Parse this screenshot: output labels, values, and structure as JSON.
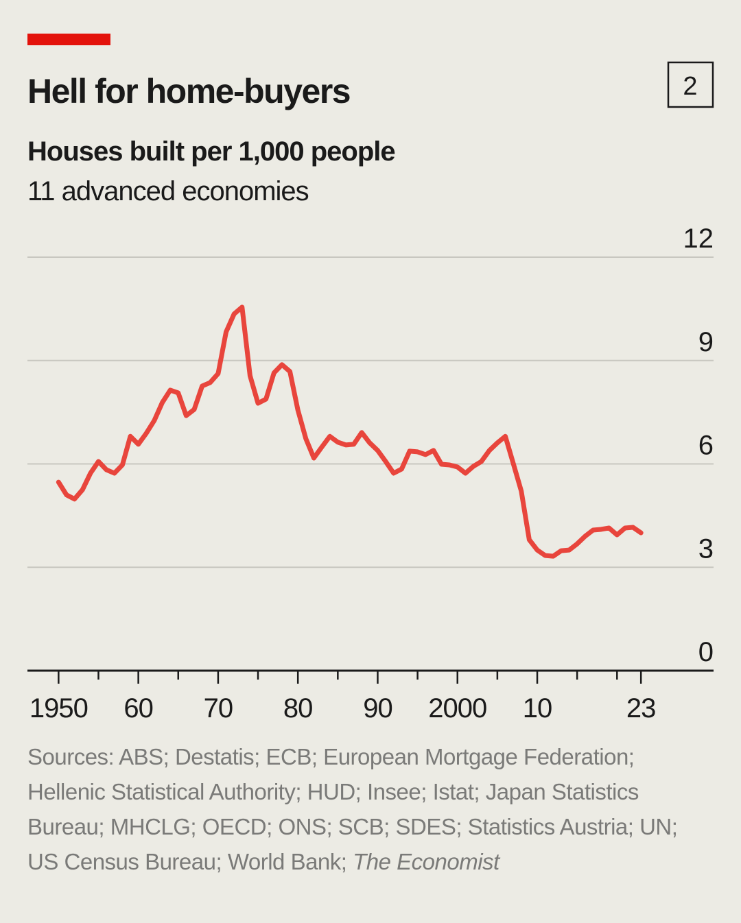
{
  "chart_data": {
    "type": "line",
    "badge": "2",
    "title": "Hell for home-buyers",
    "subtitle": "Houses built per 1,000 people",
    "description": "11 advanced economies",
    "source": "Sources: ABS; Destatis; ECB; European Mortgage Federation; Hellenic Statistical Authority; HUD; Insee; Istat; Japan Statistics Bureau; MHCLG; OECD; ONS; SCB; SDES; Statistics Austria; UN; US Census Bureau; World Bank;",
    "source_credit": "The Economist",
    "x": [
      1950,
      1951,
      1952,
      1953,
      1954,
      1955,
      1956,
      1957,
      1958,
      1959,
      1960,
      1961,
      1962,
      1963,
      1964,
      1965,
      1966,
      1967,
      1968,
      1969,
      1970,
      1971,
      1972,
      1973,
      1974,
      1975,
      1976,
      1977,
      1978,
      1979,
      1980,
      1981,
      1982,
      1983,
      1984,
      1985,
      1986,
      1987,
      1988,
      1989,
      1990,
      1991,
      1992,
      1993,
      1994,
      1995,
      1996,
      1997,
      1998,
      1999,
      2000,
      2001,
      2002,
      2003,
      2004,
      2005,
      2006,
      2007,
      2008,
      2009,
      2010,
      2011,
      2012,
      2013,
      2014,
      2015,
      2016,
      2017,
      2018,
      2019,
      2020,
      2021,
      2022,
      2023
    ],
    "series": [
      {
        "name": "Houses built per 1,000 people",
        "color": "#e8453c",
        "values": [
          5.47,
          5.1,
          4.98,
          5.25,
          5.73,
          6.07,
          5.83,
          5.73,
          5.97,
          6.8,
          6.57,
          6.89,
          7.26,
          7.78,
          8.14,
          8.06,
          7.4,
          7.58,
          8.26,
          8.36,
          8.62,
          9.83,
          10.35,
          10.55,
          8.56,
          7.76,
          7.88,
          8.64,
          8.88,
          8.68,
          7.56,
          6.73,
          6.17,
          6.49,
          6.8,
          6.63,
          6.55,
          6.57,
          6.91,
          6.61,
          6.39,
          6.07,
          5.73,
          5.85,
          6.37,
          6.35,
          6.27,
          6.39,
          5.99,
          5.97,
          5.91,
          5.73,
          5.93,
          6.07,
          6.39,
          6.61,
          6.8,
          6.01,
          5.21,
          3.8,
          3.5,
          3.34,
          3.32,
          3.48,
          3.5,
          3.68,
          3.9,
          4.08,
          4.1,
          4.14,
          3.94,
          4.14,
          4.16,
          4.0
        ]
      }
    ],
    "xlim": [
      1946.1,
      2032.1
    ],
    "xticks": [
      {
        "value": 1950,
        "label": "1950"
      },
      {
        "value": 1960,
        "label": "60"
      },
      {
        "value": 1970,
        "label": "70"
      },
      {
        "value": 1980,
        "label": "80"
      },
      {
        "value": 1990,
        "label": "90"
      },
      {
        "value": 2000,
        "label": "2000"
      },
      {
        "value": 2010,
        "label": "10"
      },
      {
        "value": 2023,
        "label": "23"
      }
    ],
    "xminor_ticks": [
      1955,
      1965,
      1975,
      1985,
      1995,
      2005,
      2015,
      2020
    ],
    "ylim": [
      0,
      12
    ],
    "yticks": [
      0,
      3,
      6,
      9,
      12
    ],
    "grid": true
  }
}
